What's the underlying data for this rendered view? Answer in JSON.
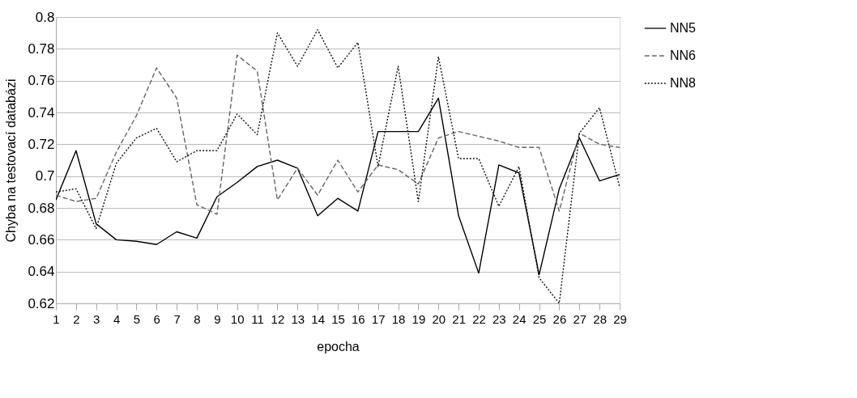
{
  "chart_data": {
    "type": "line",
    "xlabel": "epocha",
    "ylabel": "Chyba na testovací databázi",
    "x": [
      1,
      2,
      3,
      4,
      5,
      6,
      7,
      8,
      9,
      10,
      11,
      12,
      13,
      14,
      15,
      16,
      17,
      18,
      19,
      20,
      21,
      22,
      23,
      24,
      25,
      26,
      27,
      28,
      29
    ],
    "xlim": [
      1,
      29
    ],
    "xticks": [
      1,
      2,
      3,
      4,
      5,
      6,
      7,
      8,
      9,
      10,
      11,
      12,
      13,
      14,
      15,
      16,
      17,
      18,
      19,
      20,
      21,
      22,
      23,
      24,
      25,
      26,
      27,
      28,
      29
    ],
    "ylim": [
      0.62,
      0.8
    ],
    "yticks": [
      0.62,
      0.64,
      0.66,
      0.68,
      0.7,
      0.72,
      0.74,
      0.76,
      0.78,
      0.8
    ],
    "grid": "y",
    "legend": "right",
    "marker": "none",
    "series": [
      {
        "name": "NN5",
        "color": "#000000",
        "line_style": "solid",
        "values": [
          0.685,
          0.716,
          0.67,
          0.66,
          0.659,
          0.657,
          0.665,
          0.661,
          0.687,
          0.696,
          0.706,
          0.71,
          0.705,
          0.675,
          0.686,
          0.678,
          0.728,
          0.728,
          0.728,
          0.749,
          0.675,
          0.639,
          0.707,
          0.702,
          0.638,
          0.692,
          0.724,
          0.697,
          0.701
        ]
      },
      {
        "name": "NN6",
        "color": "#666666",
        "line_style": "dashed",
        "values": [
          0.688,
          0.684,
          0.686,
          0.715,
          0.738,
          0.768,
          0.749,
          0.682,
          0.676,
          0.776,
          0.766,
          0.685,
          0.705,
          0.688,
          0.71,
          0.69,
          0.707,
          0.704,
          0.695,
          0.724,
          0.728,
          0.725,
          0.722,
          0.718,
          0.718,
          0.678,
          0.727,
          0.72,
          0.718
        ]
      },
      {
        "name": "NN8",
        "color": "#111111",
        "line_style": "dotted",
        "values": [
          0.69,
          0.692,
          0.667,
          0.708,
          0.724,
          0.73,
          0.709,
          0.716,
          0.716,
          0.739,
          0.726,
          0.79,
          0.769,
          0.792,
          0.768,
          0.784,
          0.706,
          0.769,
          0.684,
          0.775,
          0.711,
          0.711,
          0.681,
          0.706,
          0.636,
          0.62,
          0.727,
          0.743,
          0.693
        ]
      }
    ]
  }
}
